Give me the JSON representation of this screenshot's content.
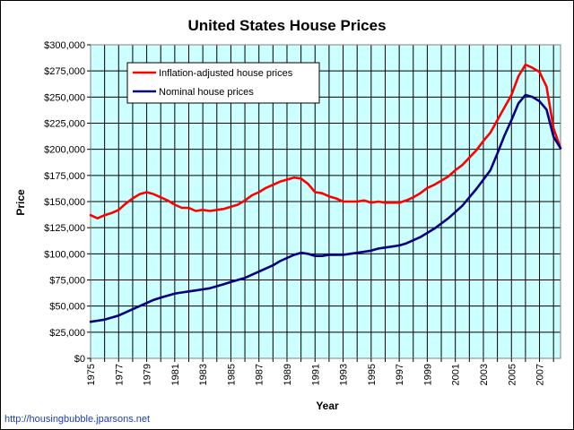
{
  "source_url": "http://housingbubble.jparsons.net",
  "chart_data": {
    "type": "line",
    "title": "United States House Prices",
    "xlabel": "Year",
    "ylabel": "Price",
    "xlim": [
      1975,
      2008.5
    ],
    "ylim": [
      0,
      300000
    ],
    "grid": true,
    "legend_position": "top-left",
    "plot_background": "#ccffff",
    "y_ticks": [
      {
        "value": 0,
        "label": "$0"
      },
      {
        "value": 25000,
        "label": "$25,000"
      },
      {
        "value": 50000,
        "label": "$50,000"
      },
      {
        "value": 75000,
        "label": "$75,000"
      },
      {
        "value": 100000,
        "label": "$100,000"
      },
      {
        "value": 125000,
        "label": "$125,000"
      },
      {
        "value": 150000,
        "label": "$150,000"
      },
      {
        "value": 175000,
        "label": "$175,000"
      },
      {
        "value": 200000,
        "label": "$200,000"
      },
      {
        "value": 225000,
        "label": "$225,000"
      },
      {
        "value": 250000,
        "label": "$250,000"
      },
      {
        "value": 275000,
        "label": "$275,000"
      },
      {
        "value": 300000,
        "label": "$300,000"
      }
    ],
    "x_ticks": [
      "1975",
      "1977",
      "1979",
      "1981",
      "1983",
      "1985",
      "1987",
      "1989",
      "1991",
      "1993",
      "1995",
      "1997",
      "1999",
      "2001",
      "2003",
      "2005",
      "2007"
    ],
    "series": [
      {
        "name": "Inflation-adjusted house prices",
        "color": "#ff0000",
        "x": [
          1975,
          1975.5,
          1976,
          1976.5,
          1977,
          1977.5,
          1978,
          1978.5,
          1979,
          1979.5,
          1980,
          1980.5,
          1981,
          1981.5,
          1982,
          1982.5,
          1983,
          1983.5,
          1984,
          1984.5,
          1985,
          1985.5,
          1986,
          1986.5,
          1987,
          1987.5,
          1988,
          1988.5,
          1989,
          1989.5,
          1990,
          1990.5,
          1991,
          1991.5,
          1992,
          1992.5,
          1993,
          1993.5,
          1994,
          1994.5,
          1995,
          1995.5,
          1996,
          1996.5,
          1997,
          1997.5,
          1998,
          1998.5,
          1999,
          1999.5,
          2000,
          2000.5,
          2001,
          2001.5,
          2002,
          2002.5,
          2003,
          2003.5,
          2004,
          2004.5,
          2005,
          2005.5,
          2006,
          2006.5,
          2007,
          2007.5,
          2008,
          2008.5
        ],
        "values": [
          137000,
          134000,
          137000,
          139000,
          142000,
          148000,
          153000,
          157000,
          159000,
          157000,
          154000,
          151000,
          147000,
          144000,
          144000,
          141000,
          142000,
          141000,
          142000,
          143000,
          145000,
          147000,
          151000,
          156000,
          159000,
          163000,
          166000,
          169000,
          171000,
          173000,
          172000,
          167000,
          159000,
          158000,
          155000,
          153000,
          150000,
          150000,
          150000,
          151000,
          149000,
          150000,
          149000,
          149000,
          149000,
          151000,
          154000,
          158000,
          163000,
          166000,
          170000,
          174000,
          180000,
          185000,
          192000,
          199000,
          208000,
          216000,
          228000,
          240000,
          252000,
          270000,
          281000,
          278000,
          274000,
          260000,
          220000,
          201000
        ]
      },
      {
        "name": "Nominal house prices",
        "color": "#000080",
        "x": [
          1975,
          1975.5,
          1976,
          1976.5,
          1977,
          1977.5,
          1978,
          1978.5,
          1979,
          1979.5,
          1980,
          1980.5,
          1981,
          1981.5,
          1982,
          1982.5,
          1983,
          1983.5,
          1984,
          1984.5,
          1985,
          1985.5,
          1986,
          1986.5,
          1987,
          1987.5,
          1988,
          1988.5,
          1989,
          1989.5,
          1990,
          1990.5,
          1991,
          1991.5,
          1992,
          1992.5,
          1993,
          1993.5,
          1994,
          1994.5,
          1995,
          1995.5,
          1996,
          1996.5,
          1997,
          1997.5,
          1998,
          1998.5,
          1999,
          1999.5,
          2000,
          2000.5,
          2001,
          2001.5,
          2002,
          2002.5,
          2003,
          2003.5,
          2004,
          2004.5,
          2005,
          2005.5,
          2006,
          2006.5,
          2007,
          2007.5,
          2008,
          2008.5
        ],
        "values": [
          35000,
          36000,
          37000,
          39000,
          41000,
          44000,
          47000,
          50000,
          53000,
          56000,
          58000,
          60000,
          62000,
          63000,
          64000,
          65000,
          66000,
          67000,
          69000,
          71000,
          73000,
          75000,
          77000,
          80000,
          83000,
          86000,
          89000,
          93000,
          96000,
          99000,
          101000,
          100000,
          98000,
          98000,
          99000,
          99000,
          99000,
          100000,
          101000,
          102000,
          103000,
          105000,
          106000,
          107000,
          108000,
          110000,
          113000,
          116000,
          120000,
          124000,
          129000,
          134000,
          140000,
          146000,
          154000,
          162000,
          171000,
          180000,
          196000,
          213000,
          228000,
          244000,
          252000,
          250000,
          246000,
          238000,
          212000,
          201000
        ]
      }
    ]
  }
}
